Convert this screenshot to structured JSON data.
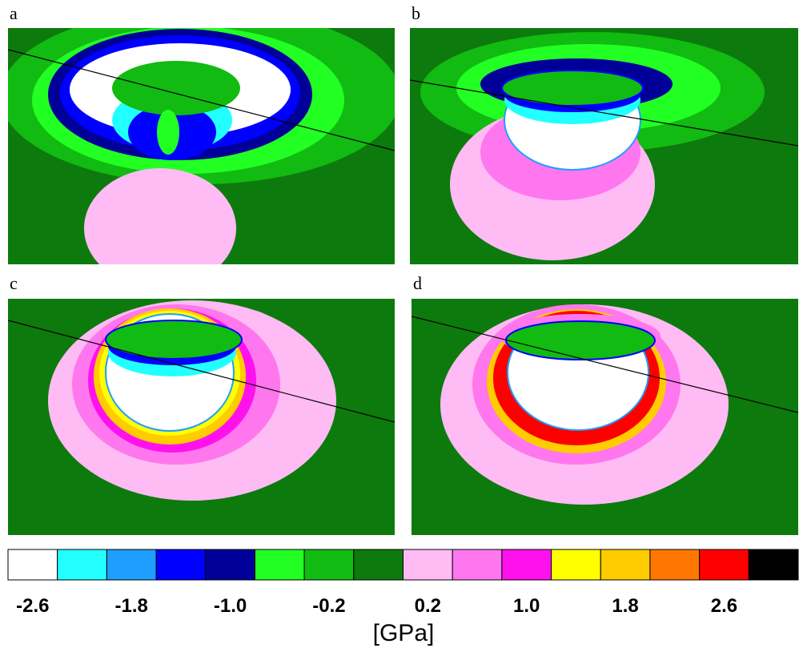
{
  "panels": {
    "labels": [
      "a",
      "b",
      "c",
      "d"
    ]
  },
  "colorbar": {
    "colors": [
      "#ffffff",
      "#22ffff",
      "#1e9eff",
      "#0000ff",
      "#000099",
      "#22ff22",
      "#11bb11",
      "#0d7a0d",
      "#ffbbf4",
      "#ff77ee",
      "#ff11ee",
      "#ffff00",
      "#ffcc00",
      "#ff7700",
      "#ff0000",
      "#000000"
    ],
    "labels": [
      "-2.6",
      "-1.8",
      "-1.0",
      "-0.2",
      "0.2",
      "1.0",
      "1.8",
      "2.6"
    ],
    "unit": "[GPa]"
  }
}
